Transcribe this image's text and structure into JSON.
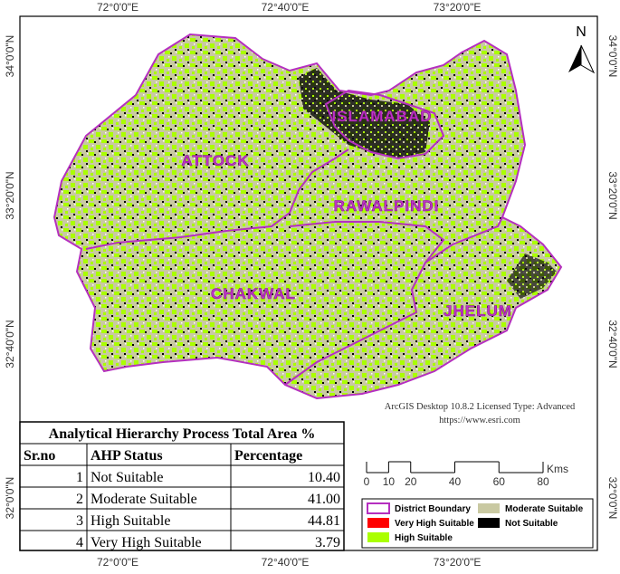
{
  "map": {
    "top_labels": [
      "72°0'0\"E",
      "72°40'0\"E",
      "73°20'0\"E"
    ],
    "bottom_labels": [
      "72°0'0\"E",
      "72°40'0\"E",
      "73°20'0\"E"
    ],
    "left_labels": [
      "34°0'0\"N",
      "33°20'0\"N",
      "32°40'0\"N",
      "32°0'0\"N"
    ],
    "right_labels": [
      "34°0'0\"N",
      "33°20'0\"N",
      "32°40'0\"N",
      "32°0'0\"N"
    ],
    "north": "N",
    "districts": [
      "ATTOCK",
      "ISLAMABAD",
      "RAWALPINDI",
      "CHAKWAL",
      "JHELUM"
    ],
    "credit": [
      "ArcGIS Desktop 10.8.2 Licensed Type: Advanced",
      "https://www.esri.com"
    ],
    "scale": {
      "ticks": [
        0,
        10,
        20,
        40,
        60,
        80
      ],
      "unit": "Kms"
    }
  },
  "legend": [
    {
      "label": "District Boundary",
      "color": "#b52fc0"
    },
    {
      "label": "Moderate Suitable",
      "color": "#c9c9a2"
    },
    {
      "label": "Very High Suitable",
      "color": "#ff0000"
    },
    {
      "label": "Not Suitable",
      "color": "#000000"
    },
    {
      "label": "High Suitable",
      "color": "#aaff00"
    }
  ],
  "table": {
    "title": "Analytical Hierarchy Process Total Area %",
    "headers": [
      "Sr.no",
      "AHP Status",
      "Percentage"
    ],
    "rows": [
      [
        "1",
        "Not Suitable",
        "10.40"
      ],
      [
        "2",
        "Moderate Suitable",
        "41.00"
      ],
      [
        "3",
        "High Suitable",
        "44.81"
      ],
      [
        "4",
        "Very High Suitable",
        "3.79"
      ]
    ]
  }
}
